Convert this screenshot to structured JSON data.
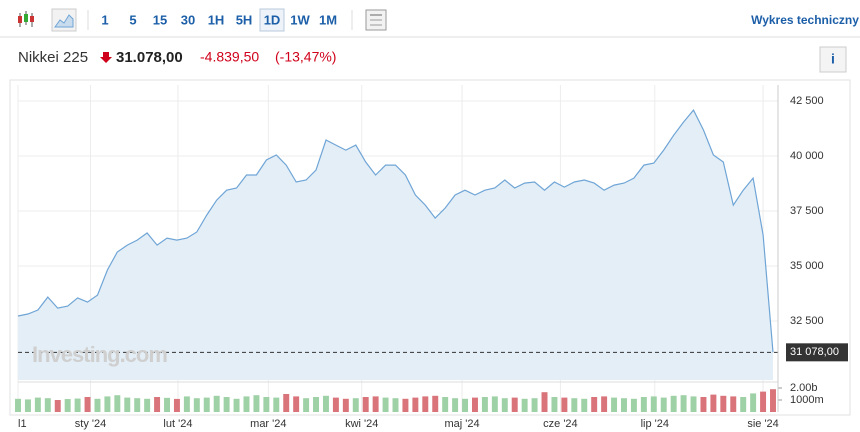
{
  "toolbar": {
    "intervals": [
      "1",
      "5",
      "15",
      "30",
      "1H",
      "5H",
      "1D",
      "1W",
      "1M"
    ],
    "selected": 6,
    "link": "Wykres techniczny »"
  },
  "header": {
    "name": "Nikkei 225",
    "price": "31.078,00",
    "change": "-4.839,50",
    "change_pct": "(-13,47%)",
    "info_button": "i"
  },
  "watermark": "Investing.com",
  "chart_data": {
    "type": "area",
    "series": [
      {
        "name": "Nikkei 225",
        "color": "#6fa5d6",
        "fill": "#e4eef6",
        "values": [
          32730,
          32820,
          33000,
          33590,
          33090,
          33180,
          33550,
          33360,
          33680,
          34820,
          35640,
          35950,
          36180,
          36500,
          35950,
          36270,
          36180,
          36270,
          36550,
          37320,
          38000,
          38450,
          38550,
          39140,
          39140,
          39820,
          40050,
          39590,
          38820,
          38910,
          39360,
          40730,
          40500,
          40270,
          40500,
          39730,
          39140,
          39590,
          39590,
          39140,
          38230,
          37770,
          37180,
          37640,
          38230,
          38450,
          38230,
          38450,
          38550,
          38910,
          38550,
          38770,
          38820,
          38450,
          38820,
          38590,
          38820,
          38910,
          38770,
          38450,
          38680,
          38770,
          39000,
          39590,
          39680,
          40270,
          40950,
          41550,
          42090,
          41180,
          40050,
          39730,
          37770,
          38450,
          39000,
          36410,
          31078
        ]
      }
    ],
    "last_label": "31 078,00",
    "ylim": [
      29820,
      43230
    ],
    "yticks": [
      {
        "value": 32500,
        "label": "32 500"
      },
      {
        "value": 35000,
        "label": "35 000"
      },
      {
        "value": 37500,
        "label": "37 500"
      },
      {
        "value": 40000,
        "label": "40 000"
      },
      {
        "value": 42500,
        "label": "42 500"
      }
    ],
    "xlim": [
      0,
      76
    ],
    "xticks": [
      {
        "value": 0,
        "label": "l1"
      },
      {
        "value": 7.3,
        "label": "sty '24"
      },
      {
        "value": 16.1,
        "label": "lut '24"
      },
      {
        "value": 25.2,
        "label": "mar '24"
      },
      {
        "value": 34.6,
        "label": "kwi '24"
      },
      {
        "value": 44.7,
        "label": "maj '24"
      },
      {
        "value": 54.6,
        "label": "cze '24"
      },
      {
        "value": 64.1,
        "label": "lip '24"
      },
      {
        "value": 75,
        "label": "sie '24"
      }
    ],
    "grid": true,
    "volume": {
      "up_color": "#9fd1a6",
      "down_color": "#d9747a",
      "ylim": [
        0,
        2000
      ],
      "yticks": [
        {
          "value": 1000,
          "label": "1000m"
        },
        {
          "value": 2000,
          "label": "2.00b"
        }
      ],
      "values": [
        1100,
        1050,
        1200,
        1150,
        1000,
        1080,
        1120,
        1250,
        1100,
        1300,
        1400,
        1200,
        1150,
        1100,
        1250,
        1180,
        1090,
        1300,
        1150,
        1200,
        1350,
        1250,
        1100,
        1300,
        1400,
        1250,
        1200,
        1500,
        1300,
        1150,
        1250,
        1350,
        1200,
        1100,
        1150,
        1250,
        1300,
        1200,
        1150,
        1100,
        1200,
        1300,
        1350,
        1250,
        1150,
        1100,
        1200,
        1250,
        1300,
        1150,
        1200,
        1100,
        1150,
        1650,
        1250,
        1200,
        1150,
        1100,
        1250,
        1300,
        1200,
        1150,
        1100,
        1250,
        1300,
        1200,
        1350,
        1400,
        1300,
        1250,
        1450,
        1350,
        1300,
        1250,
        1550,
        1700,
        1900
      ]
    }
  }
}
